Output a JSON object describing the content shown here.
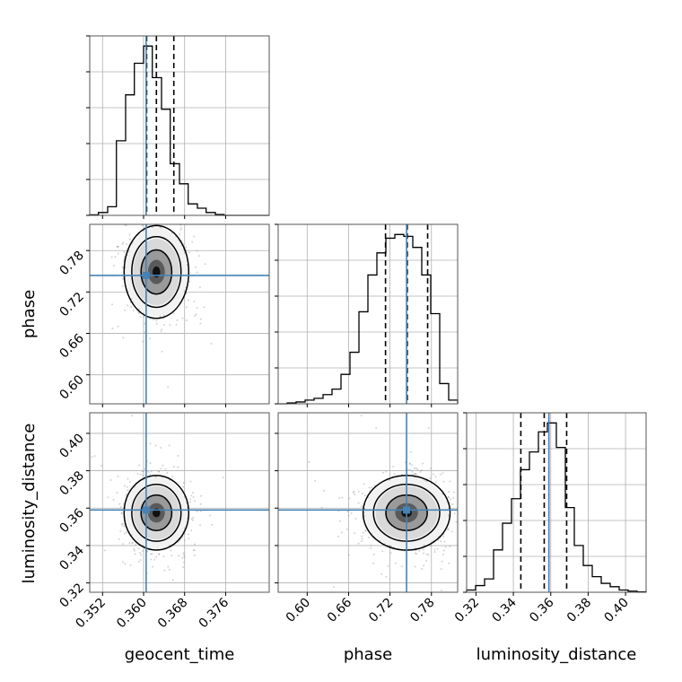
{
  "chart_data": {
    "type": "corner",
    "parameters": [
      "geocent_time",
      "phase",
      "luminosity_distance"
    ],
    "axis_labels": {
      "geocent_time": "geocent_time",
      "phase": "phase",
      "luminosity_distance": "luminosity_distance"
    },
    "ranges": {
      "geocent_time": [
        0.3495,
        0.3845
      ],
      "phase": [
        0.558,
        0.818
      ],
      "luminosity_distance": [
        0.315,
        0.411
      ]
    },
    "ticks": {
      "geocent_time": [
        "0.352",
        "0.360",
        "0.368",
        "0.376"
      ],
      "phase": [
        "0.60",
        "0.66",
        "0.72",
        "0.78"
      ],
      "luminosity_distance": [
        "0.32",
        "0.34",
        "0.36",
        "0.38",
        "0.40"
      ]
    },
    "truths": {
      "geocent_time": 0.3605,
      "phase": 0.744,
      "luminosity_distance": 0.359
    },
    "quantiles": {
      "geocent_time": [
        0.3606,
        0.3625,
        0.3659
      ],
      "phase": [
        0.7135,
        0.745,
        0.7745
      ],
      "luminosity_distance": [
        0.344,
        0.3565,
        0.3685
      ]
    },
    "histograms": {
      "geocent_time": {
        "edges": [
          0.3495,
          0.3512,
          0.353,
          0.3547,
          0.3565,
          0.3582,
          0.36,
          0.3617,
          0.3635,
          0.3652,
          0.367,
          0.3687,
          0.3705,
          0.3722,
          0.374,
          0.3757,
          0.3775,
          0.3792,
          0.381,
          0.3827,
          0.3845
        ],
        "counts": [
          0.2,
          1,
          3,
          26,
          42,
          53,
          59,
          48,
          37,
          18,
          11,
          4,
          2.5,
          1,
          0.3,
          0,
          0,
          0,
          0,
          0
        ]
      },
      "phase": {
        "edges": [
          0.558,
          0.571,
          0.584,
          0.597,
          0.61,
          0.623,
          0.636,
          0.649,
          0.662,
          0.675,
          0.688,
          0.701,
          0.714,
          0.727,
          0.74,
          0.753,
          0.766,
          0.779,
          0.792,
          0.805,
          0.818
        ],
        "counts": [
          0,
          0.5,
          1,
          2,
          3,
          5,
          8,
          16,
          28,
          50,
          70,
          82,
          90,
          92,
          91,
          85,
          70,
          49,
          11,
          2
        ]
      },
      "luminosity_distance": {
        "edges": [
          0.315,
          0.3198,
          0.3246,
          0.3294,
          0.3342,
          0.339,
          0.3438,
          0.3486,
          0.3534,
          0.3582,
          0.363,
          0.3678,
          0.3726,
          0.3774,
          0.3822,
          0.387,
          0.3918,
          0.3966,
          0.4014,
          0.4062,
          0.411
        ],
        "counts": [
          1,
          3,
          6,
          19,
          31,
          42,
          55,
          63,
          72,
          76,
          65,
          38,
          21,
          12,
          7,
          4,
          2.5,
          1,
          0.5,
          0.2
        ]
      }
    },
    "pairs": [
      {
        "x": "geocent_time",
        "y": "phase",
        "center": [
          0.3625,
          0.749
        ],
        "spread": [
          0.003,
          0.032
        ]
      },
      {
        "x": "geocent_time",
        "y": "luminosity_distance",
        "center": [
          0.3625,
          0.3575
        ],
        "spread": [
          0.003,
          0.0095
        ]
      },
      {
        "x": "phase",
        "y": "luminosity_distance",
        "center": [
          0.744,
          0.3575
        ],
        "spread": [
          0.03,
          0.0095
        ]
      }
    ],
    "colors": {
      "truth": "#4682b4",
      "hist": "#000000",
      "points": "#9e9e9e",
      "grid": "#b0b0b0"
    },
    "grid": true
  }
}
